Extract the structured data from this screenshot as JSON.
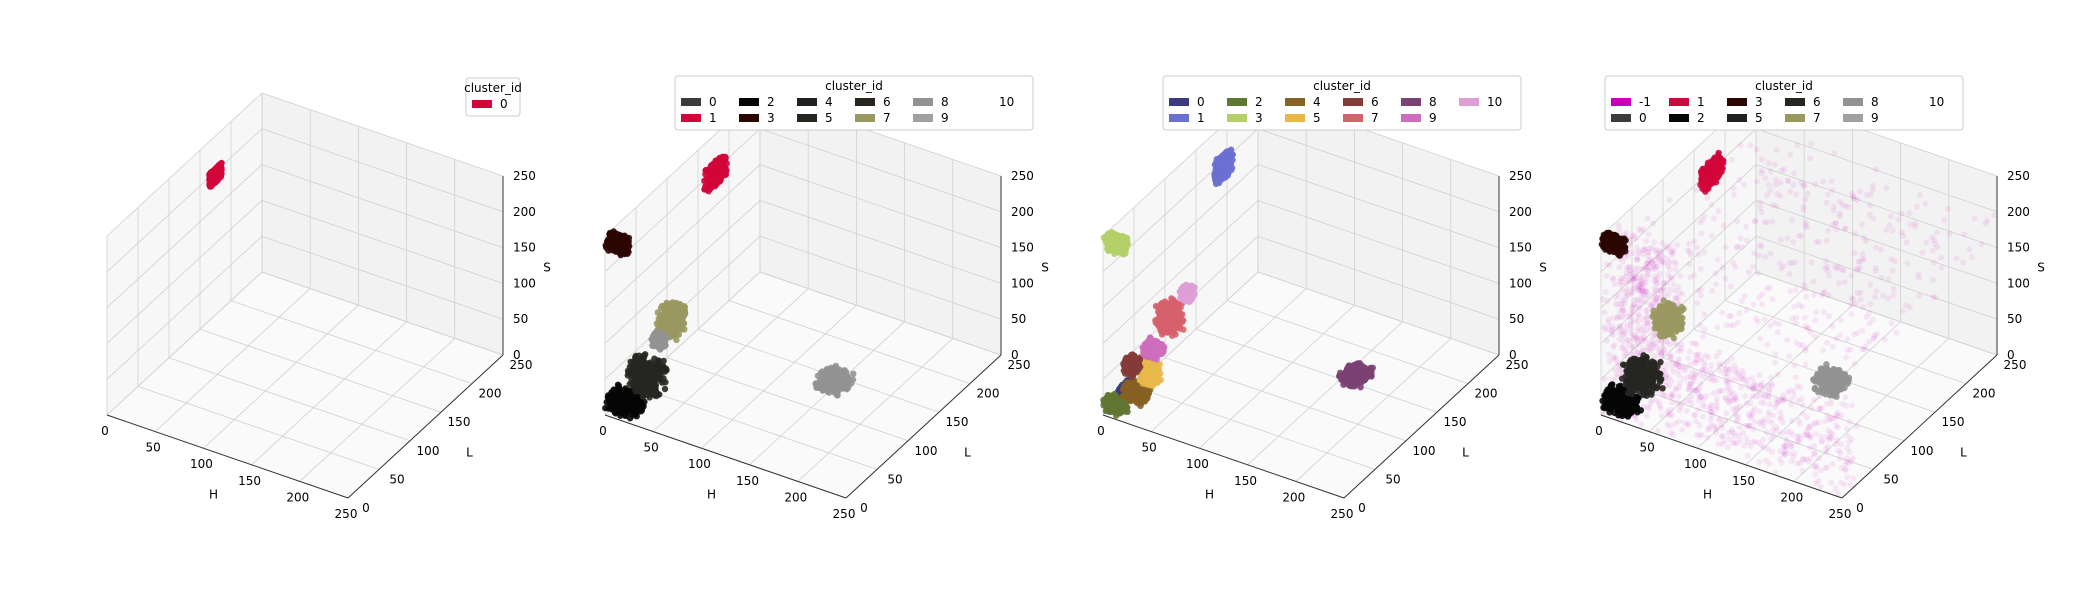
{
  "figure": {
    "background": "#ffffff",
    "pane_color": "#f2f2f2",
    "grid_color": "#d0d0d0"
  },
  "chart_data": [
    {
      "type": "scatter",
      "projection": "3d",
      "xlabel": "H",
      "ylabel": "L",
      "zlabel": "S",
      "xlim": [
        0,
        250
      ],
      "ylim": [
        0,
        250
      ],
      "zlim": [
        0,
        250
      ],
      "xticks": [
        "0",
        "50",
        "100",
        "150",
        "200",
        "250"
      ],
      "yticks": [
        "0",
        "50",
        "100",
        "150",
        "200",
        "250"
      ],
      "zticks": [
        "0",
        "50",
        "100",
        "150",
        "200",
        "250"
      ],
      "grid": true,
      "legend": {
        "title": "cluster_id",
        "placement": "top-right",
        "ncol": 1
      },
      "series": [
        {
          "name": "0",
          "color": "#d1063a",
          "clusters": [
            {
              "h": [
                0,
                0
              ],
              "l": [
                165,
                185
              ],
              "s": [
                185,
                205
              ]
            }
          ]
        }
      ]
    },
    {
      "type": "scatter",
      "projection": "3d",
      "xlabel": "H",
      "ylabel": "L",
      "zlabel": "S",
      "xlim": [
        0,
        250
      ],
      "ylim": [
        0,
        250
      ],
      "zlim": [
        0,
        250
      ],
      "xticks": [
        "0",
        "50",
        "100",
        "150",
        "200",
        "250"
      ],
      "yticks": [
        "0",
        "50",
        "100",
        "150",
        "200",
        "250"
      ],
      "zticks": [
        "0",
        "50",
        "100",
        "150",
        "200",
        "250"
      ],
      "grid": true,
      "legend": {
        "title": "cluster_id",
        "placement": "top",
        "ncol": 6
      },
      "series": [
        {
          "name": "0",
          "color": "#3c3c3c",
          "clusters": []
        },
        {
          "name": "1",
          "color": "#d1063a",
          "clusters": [
            {
              "h": [
                0,
                5
              ],
              "l": [
                160,
                190
              ],
              "s": [
                185,
                215
              ]
            }
          ]
        },
        {
          "name": "2",
          "color": "#050505",
          "clusters": [
            {
              "h": [
                0,
                30
              ],
              "l": [
                0,
                20
              ],
              "s": [
                5,
                30
              ]
            }
          ]
        },
        {
          "name": "3",
          "color": "#2b0500",
          "clusters": [
            {
              "h": [
                0,
                20
              ],
              "l": [
                0,
                10
              ],
              "s": [
                230,
                250
              ]
            }
          ]
        },
        {
          "name": "4",
          "color": "#202020",
          "clusters": []
        },
        {
          "name": "5",
          "color": "#262621",
          "clusters": [
            {
              "h": [
                20,
                50
              ],
              "l": [
                0,
                25
              ],
              "s": [
                40,
                80
              ]
            }
          ]
        },
        {
          "name": "6",
          "color": "#28251f",
          "clusters": []
        },
        {
          "name": "7",
          "color": "#9a9861",
          "clusters": [
            {
              "h": [
                40,
                60
              ],
              "l": [
                20,
                40
              ],
              "s": [
                115,
                150
              ]
            }
          ]
        },
        {
          "name": "8",
          "color": "#929292",
          "clusters": [
            {
              "h": [
                150,
                175
              ],
              "l": [
                105,
                130
              ],
              "s": [
                20,
                40
              ]
            },
            {
              "h": [
                35,
                45
              ],
              "l": [
                20,
                30
              ],
              "s": [
                95,
                110
              ]
            }
          ]
        },
        {
          "name": "9",
          "color": "#a0a0a0",
          "clusters": []
        },
        {
          "name": "10",
          "color": "#ffffff",
          "clusters": []
        }
      ]
    },
    {
      "type": "scatter",
      "projection": "3d",
      "xlabel": "H",
      "ylabel": "L",
      "zlabel": "S",
      "xlim": [
        0,
        250
      ],
      "ylim": [
        0,
        250
      ],
      "zlim": [
        0,
        250
      ],
      "xticks": [
        "0",
        "50",
        "100",
        "150",
        "200",
        "250"
      ],
      "yticks": [
        "0",
        "50",
        "100",
        "150",
        "200",
        "250"
      ],
      "zticks": [
        "0",
        "50",
        "100",
        "150",
        "200",
        "250"
      ],
      "grid": true,
      "legend": {
        "title": "cluster_id",
        "placement": "top",
        "ncol": 6
      },
      "series": [
        {
          "name": "0",
          "color": "#3a3b7e",
          "clusters": [
            {
              "h": [
                15,
                25
              ],
              "l": [
                0,
                15
              ],
              "s": [
                30,
                45
              ]
            }
          ]
        },
        {
          "name": "1",
          "color": "#6a6fd2",
          "clusters": [
            {
              "h": [
                5,
                10
              ],
              "l": [
                170,
                195
              ],
              "s": [
                190,
                220
              ]
            }
          ]
        },
        {
          "name": "2",
          "color": "#5f7733",
          "clusters": [
            {
              "h": [
                0,
                20
              ],
              "l": [
                0,
                10
              ],
              "s": [
                5,
                25
              ]
            }
          ]
        },
        {
          "name": "3",
          "color": "#b4cf68",
          "clusters": [
            {
              "h": [
                0,
                20
              ],
              "l": [
                0,
                10
              ],
              "s": [
                230,
                250
              ]
            }
          ]
        },
        {
          "name": "4",
          "color": "#876223",
          "clusters": [
            {
              "h": [
                20,
                40
              ],
              "l": [
                0,
                15
              ],
              "s": [
                30,
                50
              ]
            }
          ]
        },
        {
          "name": "5",
          "color": "#e8b84a",
          "clusters": [
            {
              "h": [
                30,
                45
              ],
              "l": [
                10,
                25
              ],
              "s": [
                50,
                75
              ]
            }
          ]
        },
        {
          "name": "6",
          "color": "#843c39",
          "clusters": [
            {
              "h": [
                20,
                30
              ],
              "l": [
                0,
                15
              ],
              "s": [
                65,
                85
              ]
            }
          ]
        },
        {
          "name": "7",
          "color": "#d6616b",
          "clusters": [
            {
              "h": [
                40,
                60
              ],
              "l": [
                20,
                40
              ],
              "s": [
                115,
                155
              ]
            }
          ]
        },
        {
          "name": "8",
          "color": "#7b4173",
          "clusters": [
            {
              "h": [
                170,
                190
              ],
              "l": [
                115,
                140
              ],
              "s": [
                30,
                45
              ]
            }
          ]
        },
        {
          "name": "9",
          "color": "#ce6dbd",
          "clusters": [
            {
              "h": [
                30,
                45
              ],
              "l": [
                15,
                30
              ],
              "s": [
                85,
                100
              ]
            }
          ]
        },
        {
          "name": "10",
          "color": "#de9ed6",
          "clusters": [
            {
              "h": [
                60,
                70
              ],
              "l": [
                30,
                40
              ],
              "s": [
                165,
                180
              ]
            }
          ]
        }
      ]
    },
    {
      "type": "scatter",
      "projection": "3d",
      "xlabel": "H",
      "ylabel": "L",
      "zlabel": "S",
      "xlim": [
        0,
        250
      ],
      "ylim": [
        0,
        250
      ],
      "zlim": [
        0,
        250
      ],
      "xticks": [
        "0",
        "50",
        "100",
        "150",
        "200",
        "250"
      ],
      "yticks": [
        "0",
        "50",
        "100",
        "150",
        "200",
        "250"
      ],
      "zticks": [
        "0",
        "50",
        "100",
        "150",
        "200",
        "250"
      ],
      "grid": true,
      "legend": {
        "title": "cluster_id",
        "placement": "top",
        "ncol": 6
      },
      "series": [
        {
          "name": "-1",
          "color": "#c700c0",
          "clusters": [
            {
              "h": [
                0,
                250
              ],
              "l": [
                0,
                250
              ],
              "s": [
                0,
                250
              ]
            }
          ]
        },
        {
          "name": "0",
          "color": "#3c3c3c",
          "clusters": []
        },
        {
          "name": "1",
          "color": "#d1063a",
          "clusters": [
            {
              "h": [
                0,
                5
              ],
              "l": [
                160,
                190
              ],
              "s": [
                185,
                215
              ]
            }
          ]
        },
        {
          "name": "2",
          "color": "#050505",
          "clusters": [
            {
              "h": [
                0,
                30
              ],
              "l": [
                0,
                20
              ],
              "s": [
                5,
                30
              ]
            }
          ]
        },
        {
          "name": "3",
          "color": "#2b0500",
          "clusters": [
            {
              "h": [
                0,
                20
              ],
              "l": [
                0,
                10
              ],
              "s": [
                230,
                250
              ]
            }
          ]
        },
        {
          "name": "5",
          "color": "#202020",
          "clusters": []
        },
        {
          "name": "6",
          "color": "#262621",
          "clusters": [
            {
              "h": [
                20,
                50
              ],
              "l": [
                0,
                25
              ],
              "s": [
                40,
                80
              ]
            }
          ]
        },
        {
          "name": "7",
          "color": "#9a9861",
          "clusters": [
            {
              "h": [
                40,
                60
              ],
              "l": [
                20,
                40
              ],
              "s": [
                115,
                150
              ]
            }
          ]
        },
        {
          "name": "8",
          "color": "#929292",
          "clusters": [
            {
              "h": [
                150,
                175
              ],
              "l": [
                105,
                130
              ],
              "s": [
                20,
                40
              ]
            }
          ]
        },
        {
          "name": "9",
          "color": "#a0a0a0",
          "clusters": []
        },
        {
          "name": "10",
          "color": "#ffffff",
          "clusters": []
        }
      ]
    }
  ]
}
